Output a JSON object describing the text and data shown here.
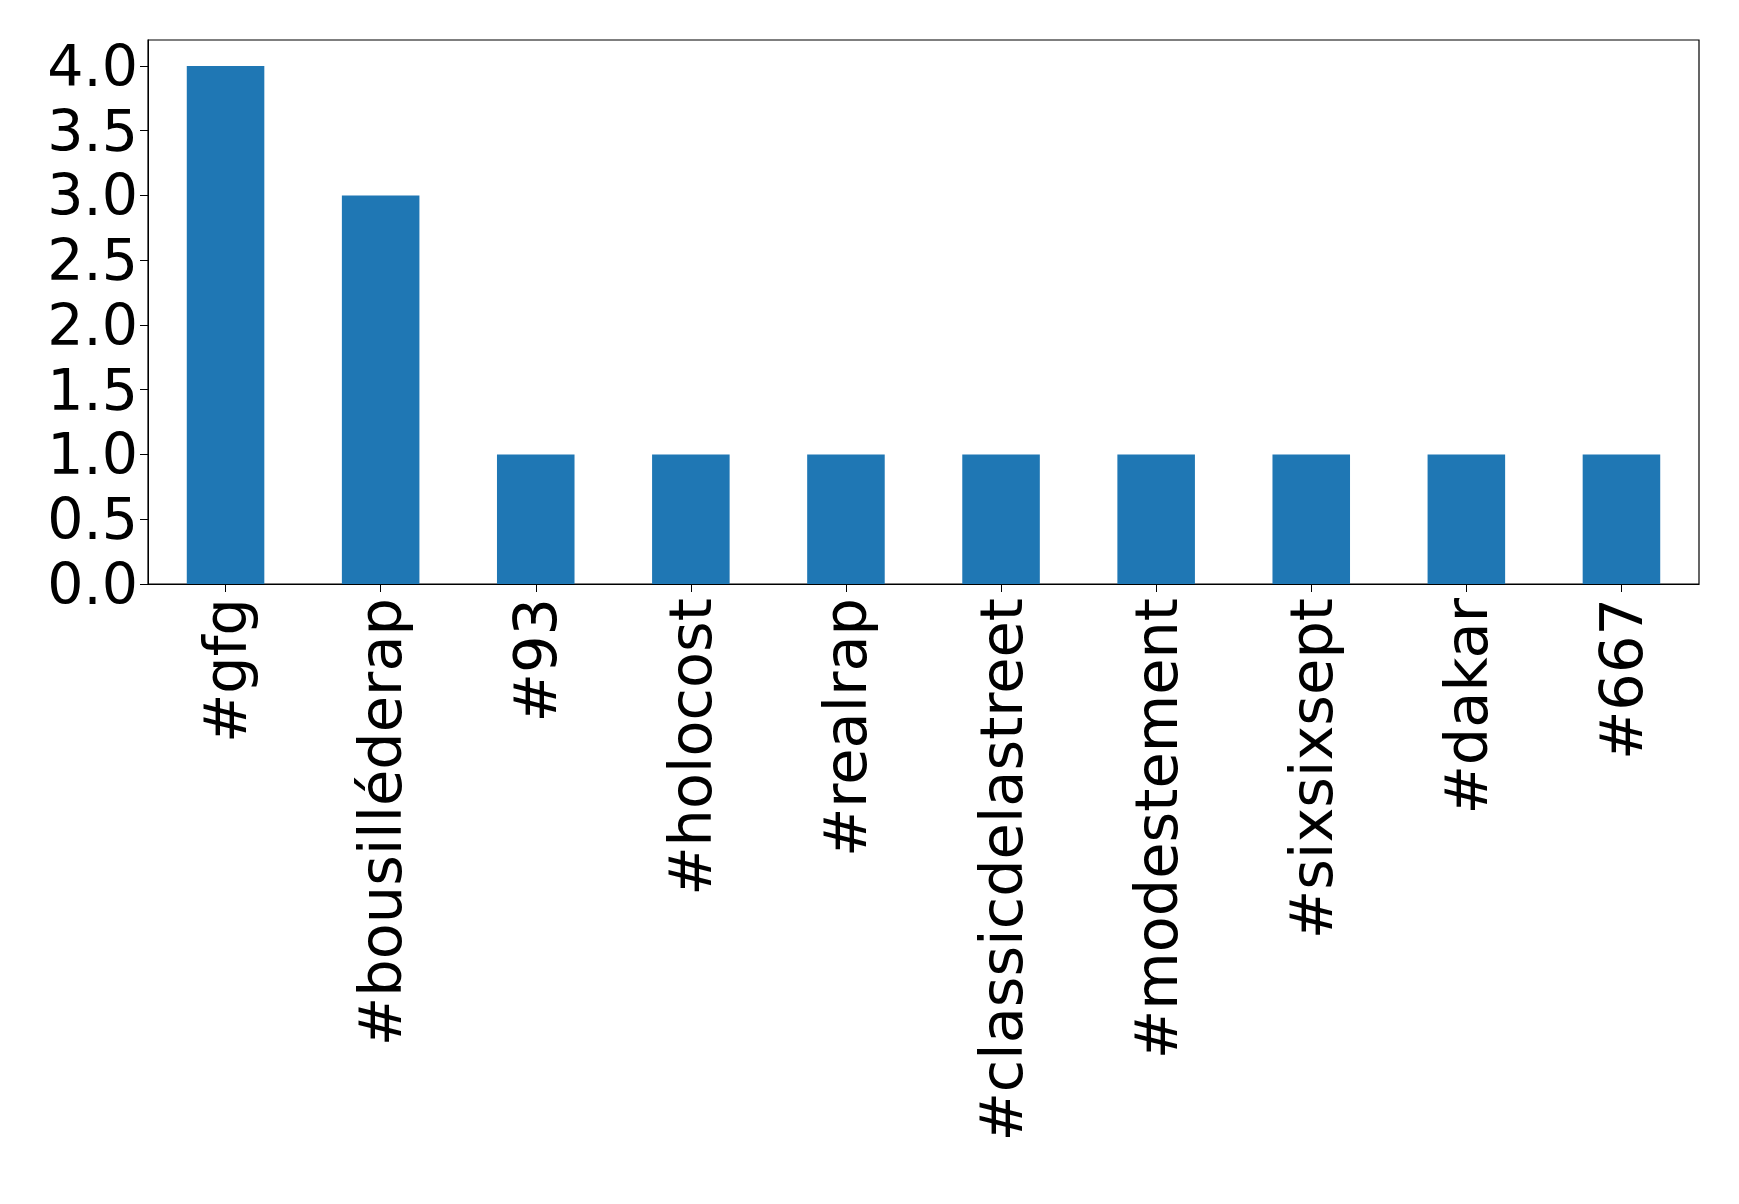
{
  "chart_data": {
    "type": "bar",
    "categories": [
      "#gfg",
      "#bousilléderap",
      "#93",
      "#holocost",
      "#realrap",
      "#classicdelastreet",
      "#modestement",
      "#sixsixsept",
      "#dakar",
      "#667"
    ],
    "values": [
      4,
      3,
      1,
      1,
      1,
      1,
      1,
      1,
      1,
      1
    ],
    "color": "#1f77b4",
    "ylim": [
      0,
      4.2
    ],
    "yticks": [
      {
        "value": 0,
        "label": "0.0"
      },
      {
        "value": 0.5,
        "label": "0.5"
      },
      {
        "value": 1,
        "label": "1.0"
      },
      {
        "value": 1.5,
        "label": "1.5"
      },
      {
        "value": 2,
        "label": "2.0"
      },
      {
        "value": 2.5,
        "label": "2.5"
      },
      {
        "value": 3,
        "label": "3.0"
      },
      {
        "value": 3.5,
        "label": "3.5"
      },
      {
        "value": 4,
        "label": "4.0"
      }
    ]
  }
}
